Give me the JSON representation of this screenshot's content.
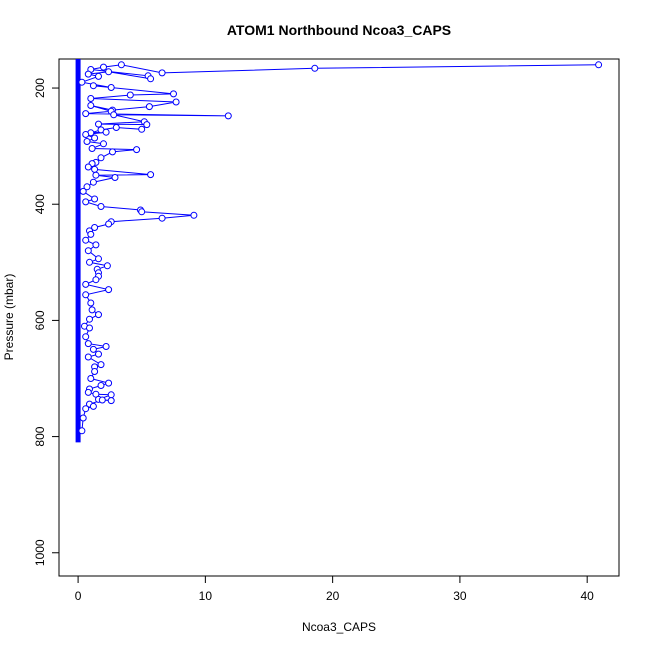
{
  "chart_data": {
    "type": "line",
    "title": "ATOM1 Northbound Ncoa3_CAPS",
    "xlabel": "Ncoa3_CAPS",
    "ylabel": "Pressure (mbar)",
    "xlim": [
      -1.5,
      42.5
    ],
    "ylim": [
      1040,
      150
    ],
    "y_reversed": true,
    "x_ticks": [
      0,
      10,
      20,
      30,
      40
    ],
    "y_ticks": [
      200,
      400,
      600,
      800,
      1000
    ],
    "grid": false,
    "legend": "none",
    "colors": {
      "series": "#0000ff",
      "axes": "#000000"
    },
    "series": [
      {
        "points": [
          [
            40.9,
            160
          ],
          [
            18.6,
            166
          ],
          [
            6.6,
            174
          ],
          [
            3.4,
            160
          ],
          [
            2.0,
            164
          ],
          [
            1.0,
            168
          ],
          [
            5.5,
            179
          ],
          [
            5.7,
            184
          ],
          [
            2.4,
            172
          ],
          [
            0.8,
            176
          ],
          [
            1.6,
            180
          ],
          [
            0.3,
            190
          ],
          [
            2.6,
            199
          ],
          [
            1.2,
            196
          ],
          [
            7.5,
            210
          ],
          [
            4.1,
            212
          ],
          [
            1.0,
            218
          ],
          [
            7.7,
            224
          ],
          [
            5.6,
            232
          ],
          [
            2.7,
            238
          ],
          [
            1.0,
            230
          ],
          [
            2.6,
            240
          ],
          [
            0.6,
            244
          ],
          [
            11.8,
            248
          ],
          [
            2.8,
            246
          ],
          [
            5.2,
            258
          ],
          [
            1.6,
            262
          ],
          [
            5.4,
            263
          ],
          [
            5.0,
            271
          ],
          [
            3.0,
            268
          ],
          [
            1.8,
            272
          ],
          [
            1.0,
            277
          ],
          [
            2.2,
            276
          ],
          [
            0.6,
            280
          ],
          [
            1.3,
            286
          ],
          [
            0.7,
            292
          ],
          [
            2.0,
            296
          ],
          [
            1.1,
            304
          ],
          [
            4.6,
            306
          ],
          [
            2.7,
            310
          ],
          [
            1.8,
            320
          ],
          [
            1.4,
            328
          ],
          [
            1.1,
            330
          ],
          [
            0.8,
            336
          ],
          [
            1.3,
            340
          ],
          [
            5.7,
            349
          ],
          [
            1.4,
            350
          ],
          [
            2.9,
            354
          ],
          [
            1.2,
            362
          ],
          [
            0.7,
            370
          ],
          [
            0.4,
            378
          ],
          [
            1.3,
            391
          ],
          [
            0.6,
            396
          ],
          [
            1.8,
            404
          ],
          [
            4.9,
            410
          ],
          [
            5.0,
            413
          ],
          [
            9.1,
            419
          ],
          [
            6.6,
            424
          ],
          [
            2.6,
            430
          ],
          [
            2.4,
            434
          ],
          [
            1.3,
            440
          ],
          [
            0.9,
            446
          ],
          [
            1.0,
            452
          ],
          [
            0.6,
            462
          ],
          [
            1.4,
            470
          ],
          [
            0.8,
            480
          ],
          [
            1.6,
            494
          ],
          [
            0.9,
            500
          ],
          [
            2.3,
            506
          ],
          [
            1.5,
            512
          ],
          [
            1.6,
            518
          ],
          [
            1.6,
            524
          ],
          [
            1.4,
            530
          ],
          [
            0.6,
            538
          ],
          [
            2.4,
            547
          ],
          [
            0.6,
            556
          ],
          [
            1.0,
            570
          ],
          [
            1.1,
            582
          ],
          [
            1.6,
            590
          ],
          [
            0.9,
            598
          ],
          [
            0.5,
            610
          ],
          [
            0.9,
            613
          ],
          [
            0.6,
            628
          ],
          [
            0.8,
            640
          ],
          [
            2.2,
            645
          ],
          [
            1.2,
            650
          ],
          [
            1.6,
            658
          ],
          [
            0.8,
            663
          ],
          [
            1.8,
            676
          ],
          [
            1.3,
            680
          ],
          [
            1.3,
            688
          ],
          [
            1.0,
            700
          ],
          [
            2.4,
            708
          ],
          [
            1.8,
            712
          ],
          [
            0.9,
            718
          ],
          [
            0.8,
            724
          ],
          [
            1.4,
            727
          ],
          [
            2.6,
            728
          ],
          [
            1.6,
            736
          ],
          [
            2.6,
            738
          ],
          [
            1.9,
            737
          ],
          [
            0.9,
            744
          ],
          [
            1.2,
            748
          ],
          [
            0.6,
            752
          ],
          [
            0.4,
            768
          ],
          [
            0.3,
            790
          ]
        ]
      }
    ]
  }
}
